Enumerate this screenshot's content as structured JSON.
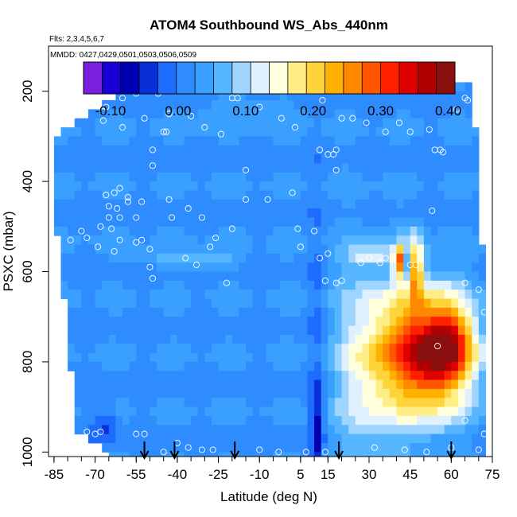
{
  "chart_data": {
    "type": "heatmap",
    "title": "ATOM4 Southbound WS_Abs_440nm",
    "flights_label": "Flts: 2,3,4,5,6,7",
    "dates_label": "MMDD: 0427,0429,0501,0503,0506,0509",
    "xlabel": "Latitude (deg N)",
    "ylabel": "PSXC (mbar)",
    "xlim": [
      -87,
      75
    ],
    "ylim": [
      1010,
      100
    ],
    "x_ticks": [
      -85,
      -70,
      -55,
      -40,
      -25,
      -10,
      5,
      15,
      30,
      45,
      60,
      75
    ],
    "x_tick_labels": [
      "-85",
      "-70",
      "-55",
      "-40",
      "-25",
      "-10",
      "5",
      "15",
      "30",
      "45",
      "60",
      "75"
    ],
    "y_ticks": [
      200,
      400,
      600,
      800,
      1000
    ],
    "y_tick_labels": [
      "200",
      "400",
      "600",
      "800",
      "1000"
    ],
    "colorbar": {
      "min": -0.14,
      "max": 0.41,
      "ticks": [
        -0.1,
        0.0,
        0.1,
        0.2,
        0.3,
        0.4
      ],
      "tick_labels": [
        "-0.10",
        "0.00",
        "0.10",
        "0.20",
        "0.30",
        "0.40"
      ],
      "colors": [
        "#7a1fe0",
        "#1a00d6",
        "#0000b0",
        "#0a2ed8",
        "#1e6cff",
        "#2e8cff",
        "#3aa0ff",
        "#56b6ff",
        "#9fd4ff",
        "#dff0ff",
        "#ffffdd",
        "#ffee88",
        "#ffd43a",
        "#ffb000",
        "#ff8800",
        "#ff5500",
        "#ff2000",
        "#e00000",
        "#b00000",
        "#8a1010"
      ]
    },
    "data_fields": {
      "background_value": 0.02,
      "lat_lower_edge": [
        [
          200,
          -60
        ],
        [
          300,
          -86
        ],
        [
          450,
          -85
        ],
        [
          600,
          -82
        ],
        [
          800,
          -79
        ],
        [
          950,
          -77
        ],
        [
          1000,
          -66
        ]
      ],
      "lat_upper_edge": [
        [
          180,
          67
        ],
        [
          300,
          69
        ],
        [
          500,
          71
        ],
        [
          700,
          72
        ],
        [
          1000,
          72
        ]
      ],
      "blobs": [
        {
          "lat": 52,
          "p": 780,
          "lat_sigma": 11,
          "p_sigma": 95,
          "value": 0.36
        },
        {
          "lat": 60,
          "p": 760,
          "lat_sigma": 5,
          "p_sigma": 45,
          "value": 0.12
        },
        {
          "lat": 30,
          "p": 800,
          "lat_sigma": 9,
          "p_sigma": 150,
          "value": 0.12
        },
        {
          "lat": 41,
          "p": 575,
          "lat_sigma": 1.5,
          "p_sigma": 25,
          "value": 0.22
        },
        {
          "lat": 47,
          "p": 590,
          "lat_sigma": 2,
          "p_sigma": 50,
          "value": 0.18
        },
        {
          "lat": 44,
          "p": 585,
          "lat_sigma": 0.8,
          "p_sigma": 20,
          "value": -0.1
        },
        {
          "lat": 11,
          "p": 950,
          "lat_sigma": 1.5,
          "p_sigma": 70,
          "value": -0.08
        },
        {
          "lat": 11,
          "p": 750,
          "lat_sigma": 2,
          "p_sigma": 200,
          "value": -0.03
        },
        {
          "lat": -66,
          "p": 940,
          "lat_sigma": 3,
          "p_sigma": 30,
          "value": -0.06
        },
        {
          "lat": 30,
          "p": 565,
          "lat_sigma": 6,
          "p_sigma": 15,
          "value": 0.08
        },
        {
          "lat": -35,
          "p": 575,
          "lat_sigma": 12,
          "p_sigma": 15,
          "value": 0.06
        },
        {
          "lat": -15,
          "p": 240,
          "lat_sigma": 14,
          "p_sigma": 25,
          "value": 0.03
        }
      ],
      "observations": [
        [
          -55,
          205
        ],
        [
          -60,
          215
        ],
        [
          -47,
          205
        ],
        [
          -66,
          235
        ],
        [
          -67,
          245
        ],
        [
          -85,
          240
        ],
        [
          -83,
          245
        ],
        [
          -78,
          255
        ],
        [
          -67,
          265
        ],
        [
          -52,
          260
        ],
        [
          -43,
          250
        ],
        [
          -35,
          255
        ],
        [
          -30,
          280
        ],
        [
          -24,
          295
        ],
        [
          -45,
          290
        ],
        [
          -44,
          290
        ],
        [
          -20,
          215
        ],
        [
          -18,
          215
        ],
        [
          -10,
          235
        ],
        [
          -2,
          260
        ],
        [
          3,
          280
        ],
        [
          -60,
          280
        ],
        [
          -49,
          330
        ],
        [
          -49,
          365
        ],
        [
          -15,
          375
        ],
        [
          12,
          330
        ],
        [
          15,
          340
        ],
        [
          17,
          340
        ],
        [
          18,
          330
        ],
        [
          18,
          375
        ],
        [
          13,
          220
        ],
        [
          20,
          260
        ],
        [
          24,
          260
        ],
        [
          29,
          270
        ],
        [
          36,
          290
        ],
        [
          41,
          270
        ],
        [
          45,
          290
        ],
        [
          52,
          285
        ],
        [
          62,
          240
        ],
        [
          65,
          215
        ],
        [
          66,
          220
        ],
        [
          54,
          330
        ],
        [
          56,
          330
        ],
        [
          57,
          335
        ],
        [
          -61,
          415
        ],
        [
          -63,
          425
        ],
        [
          -66,
          430
        ],
        [
          -58,
          435
        ],
        [
          -53,
          445
        ],
        [
          -58,
          445
        ],
        [
          -62,
          460
        ],
        [
          -65,
          455
        ],
        [
          -65,
          480
        ],
        [
          -61,
          480
        ],
        [
          -55,
          480
        ],
        [
          -64,
          505
        ],
        [
          -68,
          500
        ],
        [
          -75,
          510
        ],
        [
          -73,
          525
        ],
        [
          -79,
          530
        ],
        [
          -61,
          530
        ],
        [
          -55,
          535
        ],
        [
          -53,
          530
        ],
        [
          -43,
          440
        ],
        [
          -36,
          460
        ],
        [
          -42,
          480
        ],
        [
          -31,
          480
        ],
        [
          -15,
          440
        ],
        [
          -7,
          440
        ],
        [
          2,
          425
        ],
        [
          -20,
          505
        ],
        [
          -26,
          525
        ],
        [
          -28,
          545
        ],
        [
          -50,
          550
        ],
        [
          -37,
          570
        ],
        [
          -33,
          585
        ],
        [
          4,
          505
        ],
        [
          10,
          510
        ],
        [
          5,
          545
        ],
        [
          15,
          560
        ],
        [
          12,
          570
        ],
        [
          -50,
          590
        ],
        [
          -63,
          555
        ],
        [
          -69,
          545
        ],
        [
          27,
          580
        ],
        [
          30,
          570
        ],
        [
          34,
          580
        ],
        [
          36,
          570
        ],
        [
          45,
          585
        ],
        [
          47,
          585
        ],
        [
          53,
          465
        ],
        [
          73,
          470
        ],
        [
          -49,
          615
        ],
        [
          -22,
          625
        ],
        [
          14,
          620
        ],
        [
          18,
          625
        ],
        [
          20,
          620
        ],
        [
          65,
          625
        ],
        [
          70,
          640
        ],
        [
          72,
          690
        ],
        [
          55,
          765
        ],
        [
          65,
          930
        ],
        [
          72,
          960
        ],
        [
          -70,
          960
        ],
        [
          -68,
          955
        ],
        [
          -55,
          960
        ],
        [
          -52,
          960
        ],
        [
          -40,
          980
        ],
        [
          -36,
          990
        ],
        [
          -31,
          995
        ],
        [
          -27,
          995
        ],
        [
          -10,
          995
        ],
        [
          -3,
          1000
        ],
        [
          7,
          1000
        ],
        [
          14,
          1000
        ],
        [
          -45,
          1000
        ],
        [
          32,
          990
        ],
        [
          43,
          995
        ],
        [
          51,
          1000
        ],
        [
          60,
          990
        ],
        [
          70,
          995
        ],
        [
          -73,
          955
        ]
      ],
      "arrows": [
        -52,
        -41,
        -19,
        19,
        60
      ]
    }
  }
}
